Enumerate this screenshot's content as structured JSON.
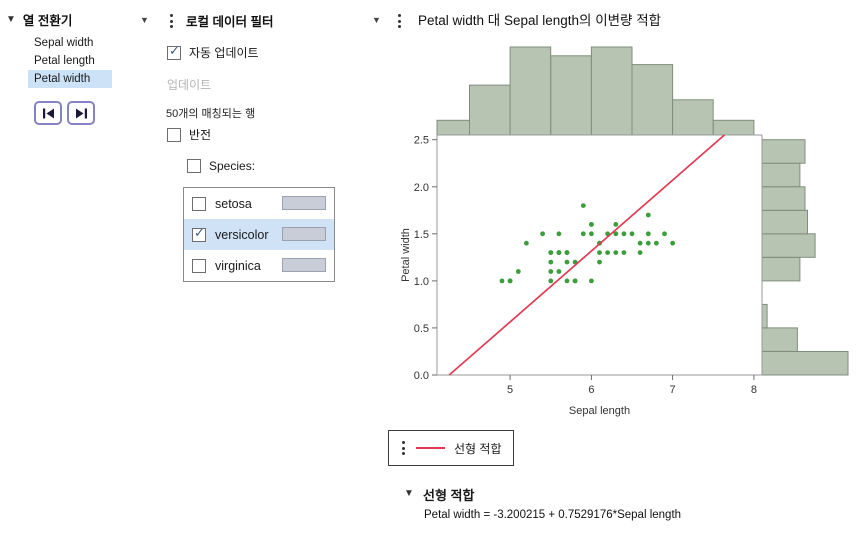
{
  "colors": {
    "selection_blue": "#cce3f7",
    "row_selection_blue": "#cfe2f6",
    "level_bar_gray": "#c9cdd8",
    "nav_button_border": "#8484c4",
    "point_green": "#3a9e3a",
    "fit_red": "#e23a52",
    "histogram_fill": "#b7c4b1"
  },
  "column_switcher": {
    "title": "열 전환기",
    "items": [
      {
        "label": "Sepal width",
        "selected": false
      },
      {
        "label": "Petal length",
        "selected": false
      },
      {
        "label": "Petal width",
        "selected": true
      }
    ]
  },
  "filter": {
    "title": "로컬 데이터 필터",
    "auto_update": {
      "label": "자동 업데이트",
      "checked": true
    },
    "update_button_label": "업데이트",
    "matching_rows_text": "50개의 매칭되는 행",
    "invert": {
      "label": "반전",
      "checked": false
    },
    "species": {
      "label": "Species:",
      "checked": false
    },
    "levels": [
      {
        "label": "setosa",
        "checked": false,
        "selected": false
      },
      {
        "label": "versicolor",
        "checked": true,
        "selected": true
      },
      {
        "label": "virginica",
        "checked": false,
        "selected": false
      }
    ]
  },
  "bivariate": {
    "fit_section_title": "선형 적합"
  },
  "chart_data": {
    "type": "scatter",
    "title": "Petal width 대 Sepal length의 이변량 적합",
    "xlabel": "Sepal length",
    "ylabel": "Petal width",
    "xlim": [
      4.1,
      8.1
    ],
    "ylim": [
      0,
      2.55
    ],
    "x_ticks": [
      5,
      6,
      7,
      8
    ],
    "y_ticks": [
      0,
      0.5,
      1,
      1.5,
      2,
      2.5
    ],
    "grid": false,
    "point_color": "#3a9e3a",
    "hist_fill": "#b7c4b1",
    "hist_stroke": "#7f8e7b",
    "points": [
      [
        7.0,
        1.4
      ],
      [
        6.4,
        1.5
      ],
      [
        6.9,
        1.5
      ],
      [
        5.5,
        1.3
      ],
      [
        6.5,
        1.5
      ],
      [
        5.7,
        1.3
      ],
      [
        6.3,
        1.6
      ],
      [
        4.9,
        1.0
      ],
      [
        6.6,
        1.3
      ],
      [
        5.2,
        1.4
      ],
      [
        5.0,
        1.0
      ],
      [
        5.9,
        1.5
      ],
      [
        6.0,
        1.0
      ],
      [
        6.1,
        1.4
      ],
      [
        5.6,
        1.3
      ],
      [
        6.7,
        1.4
      ],
      [
        5.6,
        1.5
      ],
      [
        5.8,
        1.0
      ],
      [
        6.2,
        1.5
      ],
      [
        5.6,
        1.1
      ],
      [
        5.9,
        1.8
      ],
      [
        6.1,
        1.3
      ],
      [
        6.3,
        1.5
      ],
      [
        6.1,
        1.2
      ],
      [
        6.4,
        1.3
      ],
      [
        6.6,
        1.4
      ],
      [
        6.8,
        1.4
      ],
      [
        6.7,
        1.7
      ],
      [
        6.0,
        1.5
      ],
      [
        5.7,
        1.0
      ],
      [
        5.5,
        1.1
      ],
      [
        5.5,
        1.0
      ],
      [
        5.8,
        1.2
      ],
      [
        6.0,
        1.6
      ],
      [
        5.4,
        1.5
      ],
      [
        6.0,
        1.6
      ],
      [
        6.7,
        1.5
      ],
      [
        6.3,
        1.3
      ],
      [
        5.6,
        1.3
      ],
      [
        5.5,
        1.3
      ],
      [
        5.5,
        1.2
      ],
      [
        6.1,
        1.4
      ],
      [
        5.8,
        1.0
      ],
      [
        5.0,
        1.0
      ],
      [
        5.6,
        1.3
      ],
      [
        5.7,
        1.2
      ],
      [
        5.7,
        1.3
      ],
      [
        6.2,
        1.3
      ],
      [
        5.1,
        1.1
      ],
      [
        5.7,
        1.3
      ]
    ],
    "fit_line": {
      "label": "선형 적합",
      "equation": "Petal width = -3.200215 + 0.7529176*Sepal length",
      "intercept": -3.200215,
      "slope": 0.7529176,
      "color": "#e23a52"
    },
    "top_histogram": {
      "variable": "Sepal length",
      "bin_start": 4.0,
      "bin_width": 0.5,
      "counts": [
        5,
        17,
        30,
        27,
        30,
        24,
        12,
        5
      ]
    },
    "right_histogram": {
      "variable": "Petal width",
      "bin_start": 0.0,
      "bin_width": 0.25,
      "counts": [
        34,
        14,
        2,
        0,
        15,
        21,
        18,
        17,
        15,
        17
      ]
    }
  }
}
